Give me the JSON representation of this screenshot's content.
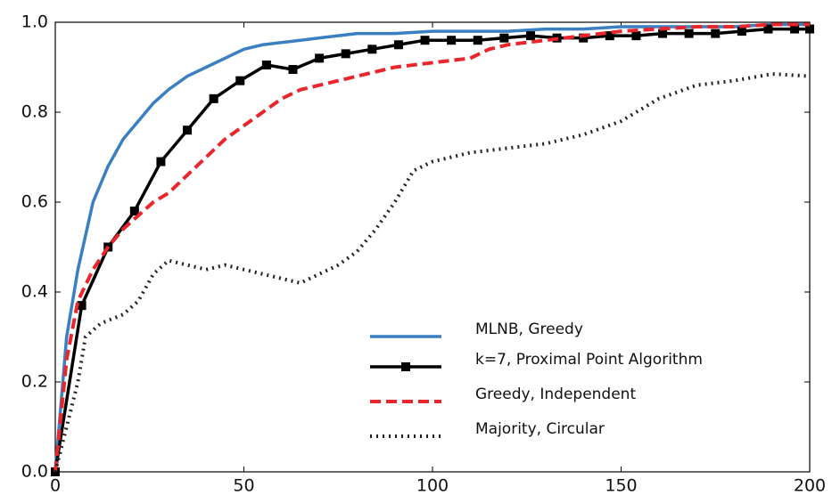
{
  "chart_data": {
    "type": "line",
    "xlim": [
      0,
      200
    ],
    "xticks": [
      0,
      50,
      100,
      150,
      200
    ],
    "ylim": [
      0,
      1
    ],
    "yticks": [
      {
        "value": 0,
        "label": "0.0"
      },
      0.2,
      0.4,
      0.6,
      0.8,
      {
        "value": 1,
        "label": "1.0"
      }
    ],
    "grid": false,
    "legend": "lower right",
    "series": [
      {
        "name": "MLNB, Greedy",
        "color": "#3a7fc1",
        "style": "solid",
        "marker": "none",
        "x": [
          0,
          3,
          6,
          10,
          14,
          18,
          22,
          26,
          30,
          35,
          40,
          45,
          50,
          55,
          60,
          65,
          70,
          75,
          80,
          90,
          100,
          110,
          120,
          130,
          140,
          150,
          160,
          170,
          180,
          190,
          200
        ],
        "values": [
          0,
          0.3,
          0.45,
          0.6,
          0.68,
          0.74,
          0.78,
          0.82,
          0.85,
          0.88,
          0.9,
          0.92,
          0.94,
          0.95,
          0.955,
          0.96,
          0.965,
          0.97,
          0.975,
          0.975,
          0.98,
          0.98,
          0.98,
          0.985,
          0.985,
          0.99,
          0.99,
          0.99,
          0.99,
          0.995,
          0.995
        ]
      },
      {
        "name": "k=7, Proximal Point Algorithm",
        "color": "#000000",
        "style": "solid",
        "marker": "square",
        "x": [
          0,
          7,
          14,
          21,
          28,
          35,
          42,
          49,
          56,
          63,
          70,
          77,
          84,
          91,
          98,
          105,
          112,
          119,
          126,
          133,
          140,
          147,
          154,
          161,
          168,
          175,
          182,
          189,
          196,
          200
        ],
        "values": [
          0,
          0.37,
          0.5,
          0.58,
          0.69,
          0.76,
          0.83,
          0.87,
          0.905,
          0.895,
          0.92,
          0.93,
          0.94,
          0.95,
          0.96,
          0.96,
          0.96,
          0.965,
          0.97,
          0.965,
          0.965,
          0.97,
          0.97,
          0.975,
          0.975,
          0.975,
          0.98,
          0.985,
          0.985,
          0.985
        ]
      },
      {
        "name": "Greedy, Independent",
        "color": "#e8262b",
        "style": "dashed",
        "marker": "none",
        "x": [
          0,
          3,
          6,
          10,
          14,
          18,
          22,
          26,
          30,
          35,
          40,
          45,
          50,
          55,
          60,
          65,
          70,
          80,
          90,
          100,
          110,
          115,
          120,
          130,
          140,
          150,
          160,
          170,
          180,
          190,
          200
        ],
        "values": [
          0,
          0.25,
          0.38,
          0.45,
          0.5,
          0.54,
          0.57,
          0.6,
          0.62,
          0.66,
          0.7,
          0.74,
          0.77,
          0.8,
          0.83,
          0.85,
          0.86,
          0.88,
          0.9,
          0.91,
          0.92,
          0.94,
          0.95,
          0.96,
          0.97,
          0.98,
          0.985,
          0.99,
          0.99,
          0.995,
          0.995
        ]
      },
      {
        "name": "Majority, Circular",
        "color": "#222222",
        "style": "dotted",
        "marker": "none",
        "x": [
          0,
          3,
          6,
          8,
          12,
          18,
          22,
          26,
          30,
          35,
          40,
          45,
          50,
          55,
          60,
          65,
          70,
          75,
          80,
          85,
          90,
          95,
          100,
          105,
          110,
          120,
          130,
          140,
          150,
          160,
          170,
          180,
          190,
          200
        ],
        "values": [
          0,
          0.1,
          0.2,
          0.3,
          0.33,
          0.35,
          0.38,
          0.44,
          0.47,
          0.46,
          0.45,
          0.46,
          0.45,
          0.44,
          0.43,
          0.42,
          0.44,
          0.46,
          0.49,
          0.54,
          0.6,
          0.67,
          0.69,
          0.7,
          0.71,
          0.72,
          0.73,
          0.75,
          0.78,
          0.83,
          0.86,
          0.87,
          0.885,
          0.88
        ]
      }
    ]
  }
}
